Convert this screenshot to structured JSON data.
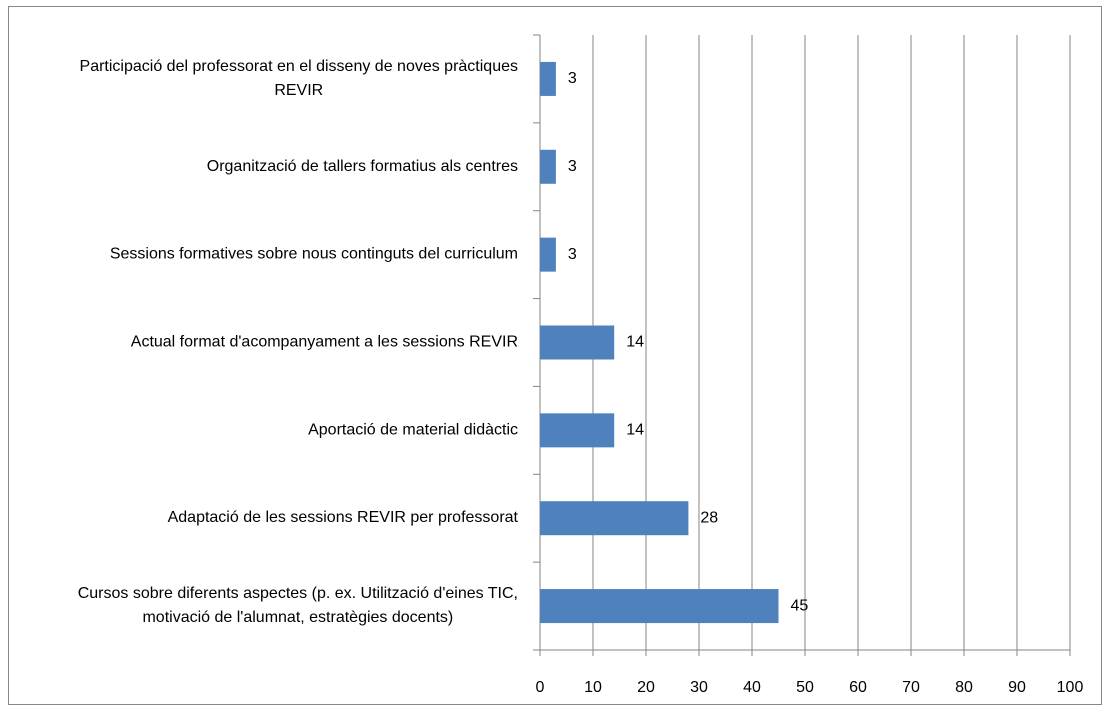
{
  "chart_data": {
    "type": "bar",
    "orientation": "horizontal",
    "categories": [
      "Participació del professorat en el disseny de noves pràctiques REVIR",
      "Organització de tallers formatius als centres",
      "Sessions formatives sobre nous continguts del curriculum",
      "Actual format d'acompanyament a les sessions REVIR",
      "Aportació de material didàctic",
      "Adaptació de les sessions REVIR per professorat",
      "Cursos sobre diferents aspectes (p. ex. Utilització d'eines TIC, motivació de l'alumnat, estratègies docents)"
    ],
    "values": [
      3,
      3,
      3,
      14,
      14,
      28,
      45
    ],
    "color": "#4f81bd",
    "xlim": [
      0,
      100
    ],
    "xticks": [
      0,
      10,
      20,
      30,
      40,
      50,
      60,
      70,
      80,
      90,
      100
    ],
    "grid": true
  }
}
